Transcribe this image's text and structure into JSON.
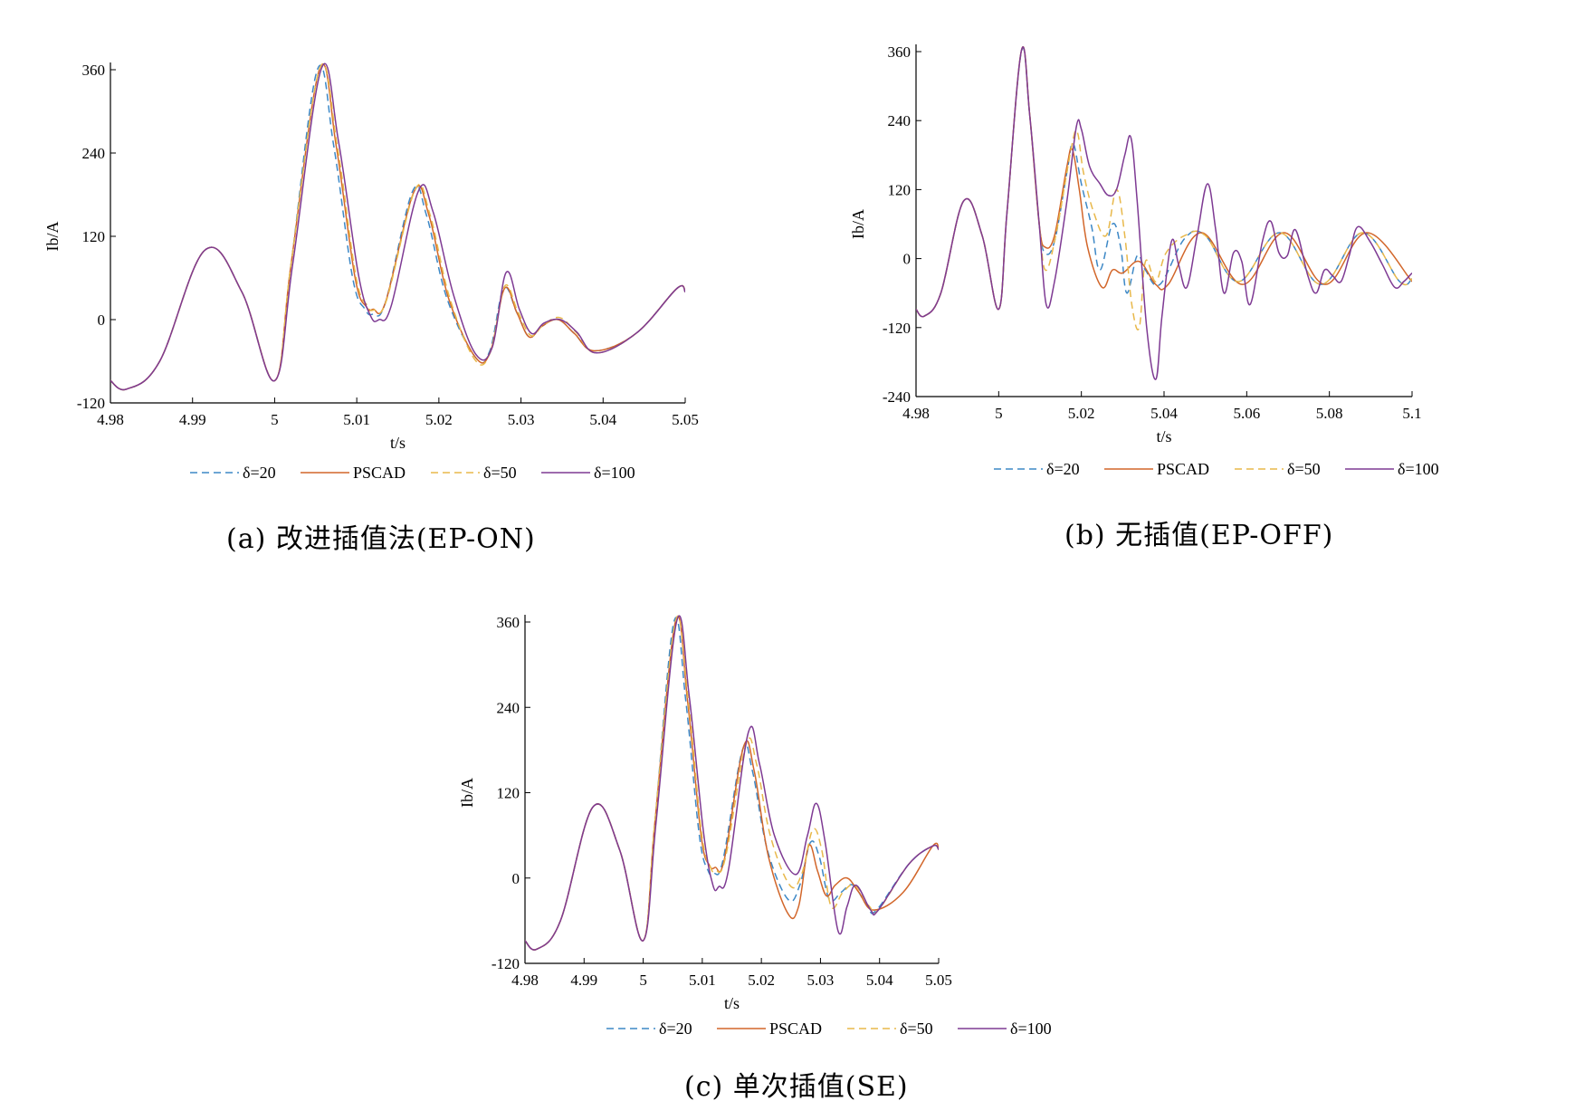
{
  "colors": {
    "d20": "#3d88c6",
    "pscad": "#d2662a",
    "d50": "#e8b84a",
    "d100": "#7e3a93"
  },
  "legend_labels": [
    "δ=20",
    "PSCAD",
    "δ=50",
    "δ=100"
  ],
  "captions": {
    "a": "(a) 改进插值法(EP-ON)",
    "b": "(b) 无插值(EP-OFF)",
    "c": "(c) 单次插值(SE)"
  },
  "chart_data": [
    {
      "id": "a",
      "type": "line",
      "xlabel": "t/s",
      "ylabel": "Ib/A",
      "xlim": [
        4.98,
        5.05
      ],
      "ylim": [
        -120,
        360
      ],
      "xticks": [
        4.98,
        4.99,
        5,
        5.01,
        5.02,
        5.03,
        5.04,
        5.05
      ],
      "xtick_labels": [
        "4.98",
        "4.99",
        "5",
        "5.01",
        "5.02",
        "5.03",
        "5.04",
        "5.05"
      ],
      "yticks": [
        -120,
        0,
        120,
        240,
        360
      ],
      "ytick_labels": [
        "-120",
        "0",
        "120",
        "240",
        "360"
      ],
      "legend": "bottom",
      "grid": false,
      "series": [
        {
          "name": "δ=20",
          "color_key": "d20",
          "dashed": true,
          "x": [
            4.98,
            4.982,
            4.986,
            4.9915,
            4.996,
            5.0,
            5.002,
            5.0052,
            5.0072,
            5.0095,
            5.011,
            5.012,
            5.0135,
            5.0168,
            5.0185,
            5.021,
            5.0245,
            5.0262,
            5.0279,
            5.0295,
            5.031,
            5.0325,
            5.0345,
            5.0365,
            5.039,
            5.044,
            5.049,
            5.05
          ],
          "y": [
            -88,
            -100,
            -60,
            100,
            40,
            -88,
            80,
            360,
            250,
            60,
            15,
            8,
            25,
            185,
            150,
            30,
            -55,
            -45,
            45,
            10,
            -25,
            -10,
            0,
            -20,
            -45,
            -20,
            45,
            40
          ]
        },
        {
          "name": "PSCAD",
          "color_key": "pscad",
          "dashed": false,
          "x": [
            4.98,
            4.982,
            4.986,
            4.9915,
            4.996,
            5.0,
            5.002,
            5.0055,
            5.0075,
            5.0098,
            5.0112,
            5.012,
            5.0135,
            5.017,
            5.0188,
            5.0212,
            5.0245,
            5.0263,
            5.028,
            5.0295,
            5.031,
            5.0325,
            5.0345,
            5.0365,
            5.039,
            5.044,
            5.049,
            5.05
          ],
          "y": [
            -88,
            -100,
            -60,
            100,
            40,
            -88,
            80,
            362,
            250,
            60,
            18,
            15,
            25,
            185,
            150,
            30,
            -55,
            -45,
            45,
            10,
            -25,
            -10,
            0,
            -20,
            -45,
            -20,
            45,
            40
          ]
        },
        {
          "name": "δ=50",
          "color_key": "d50",
          "dashed": true,
          "x": [
            4.98,
            4.982,
            4.986,
            4.9915,
            4.996,
            5.0,
            5.002,
            5.0055,
            5.0076,
            5.0099,
            5.0113,
            5.0121,
            5.0136,
            5.0171,
            5.0189,
            5.0213,
            5.0244,
            5.0263,
            5.028,
            5.0296,
            5.0312,
            5.0327,
            5.0347,
            5.0367,
            5.0392,
            5.0442,
            5.049,
            5.05
          ],
          "y": [
            -88,
            -100,
            -60,
            100,
            40,
            -88,
            80,
            362,
            252,
            62,
            20,
            14,
            27,
            187,
            152,
            32,
            -58,
            -46,
            48,
            12,
            -23,
            -8,
            3,
            -18,
            -48,
            -18,
            45,
            40
          ]
        },
        {
          "name": "δ=100",
          "color_key": "d100",
          "dashed": false,
          "x": [
            4.98,
            4.982,
            4.986,
            4.9915,
            4.996,
            5.0,
            5.0022,
            5.0057,
            5.0078,
            5.0102,
            5.0117,
            5.0127,
            5.0142,
            5.0175,
            5.0193,
            5.0218,
            5.0245,
            5.0265,
            5.0282,
            5.0298,
            5.0313,
            5.0328,
            5.0348,
            5.0368,
            5.0392,
            5.0442,
            5.049,
            5.05
          ],
          "y": [
            -88,
            -100,
            -60,
            100,
            40,
            -88,
            80,
            362,
            255,
            65,
            5,
            0,
            20,
            185,
            155,
            35,
            -50,
            -40,
            68,
            15,
            -20,
            -5,
            0,
            -18,
            -48,
            -18,
            45,
            40
          ]
        }
      ]
    },
    {
      "id": "b",
      "type": "line",
      "xlabel": "t/s",
      "ylabel": "Ib/A",
      "xlim": [
        4.98,
        5.1
      ],
      "ylim": [
        -240,
        360
      ],
      "xticks": [
        4.98,
        5,
        5.02,
        5.04,
        5.06,
        5.08,
        5.1
      ],
      "xtick_labels": [
        "4.98",
        "5",
        "5.02",
        "5.04",
        "5.06",
        "5.08",
        "5.1"
      ],
      "yticks": [
        -240,
        -120,
        0,
        120,
        240,
        360
      ],
      "ytick_labels": [
        "-240",
        "-120",
        "0",
        "120",
        "240",
        "360"
      ],
      "legend": "bottom",
      "grid": false,
      "series": [
        {
          "name": "δ=20",
          "color_key": "d20",
          "dashed": true,
          "x": [
            4.98,
            4.982,
            4.986,
            4.9915,
            4.996,
            5.0,
            5.002,
            5.0055,
            5.0075,
            5.0098,
            5.0112,
            5.0135,
            5.0165,
            5.018,
            5.02,
            5.0225,
            5.0245,
            5.0275,
            5.0295,
            5.031,
            5.0335,
            5.0355,
            5.039,
            5.045,
            5.05,
            5.058,
            5.068,
            5.078,
            5.088,
            5.097,
            5.1
          ],
          "y": [
            -88,
            -100,
            -60,
            100,
            40,
            -88,
            80,
            360,
            250,
            60,
            10,
            30,
            150,
            200,
            130,
            55,
            -20,
            60,
            20,
            -60,
            5,
            -20,
            -45,
            35,
            40,
            -40,
            45,
            -45,
            45,
            -40,
            -35
          ]
        },
        {
          "name": "PSCAD",
          "color_key": "pscad",
          "dashed": false,
          "x": [
            4.98,
            4.982,
            4.986,
            4.9915,
            4.996,
            5.0,
            5.002,
            5.0055,
            5.0075,
            5.0098,
            5.0112,
            5.0135,
            5.0165,
            5.0178,
            5.0195,
            5.0215,
            5.025,
            5.0275,
            5.03,
            5.034,
            5.038,
            5.041,
            5.049,
            5.059,
            5.069,
            5.079,
            5.089,
            5.1
          ],
          "y": [
            -88,
            -100,
            -60,
            100,
            40,
            -88,
            80,
            362,
            250,
            60,
            20,
            40,
            160,
            190,
            120,
            20,
            -50,
            -20,
            -25,
            -5,
            -45,
            -45,
            45,
            -45,
            45,
            -45,
            45,
            -40
          ]
        },
        {
          "name": "δ=50",
          "color_key": "d50",
          "dashed": true,
          "x": [
            4.98,
            4.982,
            4.986,
            4.9915,
            4.996,
            5.0,
            5.002,
            5.0055,
            5.0075,
            5.0098,
            5.0113,
            5.0138,
            5.0175,
            5.019,
            5.0205,
            5.023,
            5.026,
            5.0285,
            5.0305,
            5.0322,
            5.034,
            5.0355,
            5.038,
            5.0405,
            5.045,
            5.05,
            5.058,
            5.068,
            5.078,
            5.088,
            5.097,
            5.1
          ],
          "y": [
            -88,
            -100,
            -60,
            100,
            40,
            -88,
            80,
            362,
            252,
            62,
            -20,
            40,
            190,
            220,
            150,
            80,
            40,
            120,
            40,
            -80,
            -120,
            -5,
            -40,
            10,
            40,
            40,
            -40,
            45,
            -45,
            45,
            -40,
            -35
          ]
        },
        {
          "name": "δ=100",
          "color_key": "d100",
          "dashed": false,
          "x": [
            4.98,
            4.982,
            4.986,
            4.9915,
            4.996,
            5.0,
            5.002,
            5.0055,
            5.0075,
            5.0098,
            5.0115,
            5.0135,
            5.0165,
            5.0188,
            5.02,
            5.022,
            5.0245,
            5.0265,
            5.0285,
            5.0305,
            5.032,
            5.0335,
            5.0358,
            5.038,
            5.0395,
            5.0418,
            5.0435,
            5.0455,
            5.048,
            5.0505,
            5.0525,
            5.0545,
            5.0568,
            5.0588,
            5.0608,
            5.0638,
            5.0658,
            5.0678,
            5.0698,
            5.0718,
            5.0748,
            5.0768,
            5.0788,
            5.0808,
            5.0828,
            5.0848,
            5.0868,
            5.0898,
            5.0928,
            5.0958,
            5.098,
            5.1
          ],
          "y": [
            -88,
            -100,
            -60,
            100,
            40,
            -88,
            80,
            362,
            250,
            60,
            -80,
            -40,
            100,
            230,
            225,
            160,
            130,
            110,
            120,
            180,
            210,
            100,
            -120,
            -210,
            -100,
            30,
            -10,
            -50,
            40,
            130,
            50,
            -60,
            10,
            -5,
            -80,
            30,
            65,
            10,
            5,
            50,
            -30,
            -60,
            -20,
            -30,
            -40,
            5,
            55,
            30,
            -10,
            -50,
            -40,
            -25
          ]
        }
      ]
    },
    {
      "id": "c",
      "type": "line",
      "xlabel": "t/s",
      "ylabel": "Ib/A",
      "xlim": [
        4.98,
        5.05
      ],
      "ylim": [
        -120,
        360
      ],
      "xticks": [
        4.98,
        4.99,
        5,
        5.01,
        5.02,
        5.03,
        5.04,
        5.05
      ],
      "xtick_labels": [
        "4.98",
        "4.99",
        "5",
        "5.01",
        "5.02",
        "5.03",
        "5.04",
        "5.05"
      ],
      "yticks": [
        -120,
        0,
        120,
        240,
        360
      ],
      "ytick_labels": [
        "-120",
        "0",
        "120",
        "240",
        "360"
      ],
      "legend": "bottom",
      "grid": false,
      "series": [
        {
          "name": "δ=20",
          "color_key": "d20",
          "dashed": true,
          "x": [
            4.98,
            4.982,
            4.986,
            4.9915,
            4.996,
            5.0,
            5.002,
            5.0052,
            5.0072,
            5.0095,
            5.011,
            5.012,
            5.0135,
            5.0168,
            5.0185,
            5.021,
            5.0245,
            5.0265,
            5.0283,
            5.0298,
            5.0315,
            5.0335,
            5.0355,
            5.038,
            5.0395,
            5.045,
            5.049,
            5.05
          ],
          "y": [
            -88,
            -100,
            -60,
            100,
            40,
            -88,
            80,
            360,
            250,
            60,
            10,
            6,
            25,
            180,
            150,
            40,
            -30,
            -10,
            50,
            30,
            -30,
            -20,
            -10,
            -40,
            -45,
            20,
            45,
            40
          ]
        },
        {
          "name": "PSCAD",
          "color_key": "pscad",
          "dashed": false,
          "x": [
            4.98,
            4.982,
            4.986,
            4.9915,
            4.996,
            5.0,
            5.002,
            5.0055,
            5.0075,
            5.0098,
            5.0112,
            5.0122,
            5.0137,
            5.017,
            5.0188,
            5.0212,
            5.0245,
            5.0263,
            5.028,
            5.0295,
            5.031,
            5.0325,
            5.0345,
            5.0365,
            5.039,
            5.044,
            5.049,
            5.05
          ],
          "y": [
            -88,
            -100,
            -60,
            100,
            40,
            -88,
            80,
            362,
            250,
            60,
            18,
            15,
            25,
            185,
            150,
            30,
            -50,
            -40,
            45,
            10,
            -25,
            -10,
            0,
            -20,
            -45,
            -20,
            45,
            40
          ]
        },
        {
          "name": "δ=50",
          "color_key": "d50",
          "dashed": true,
          "x": [
            4.98,
            4.982,
            4.986,
            4.9915,
            4.996,
            5.0,
            5.002,
            5.0055,
            5.0076,
            5.0099,
            5.0114,
            5.0123,
            5.0139,
            5.0174,
            5.0192,
            5.0215,
            5.0248,
            5.0268,
            5.0287,
            5.0302,
            5.0318,
            5.0338,
            5.0358,
            5.0383,
            5.0398,
            5.045,
            5.049,
            5.05
          ],
          "y": [
            -88,
            -100,
            -60,
            100,
            40,
            -88,
            80,
            362,
            252,
            62,
            15,
            10,
            28,
            188,
            160,
            60,
            -10,
            5,
            68,
            40,
            -40,
            -20,
            -10,
            -40,
            -45,
            20,
            45,
            40
          ]
        },
        {
          "name": "δ=100",
          "color_key": "d100",
          "dashed": false,
          "x": [
            4.98,
            4.982,
            4.986,
            4.9915,
            4.996,
            5.0,
            5.0022,
            5.0057,
            5.0078,
            5.0102,
            5.0118,
            5.0128,
            5.0144,
            5.0178,
            5.0197,
            5.0222,
            5.0258,
            5.0278,
            5.0293,
            5.0308,
            5.033,
            5.0345,
            5.036,
            5.0385,
            5.0398,
            5.045,
            5.049,
            5.05
          ],
          "y": [
            -88,
            -100,
            -60,
            100,
            40,
            -88,
            80,
            362,
            255,
            65,
            -10,
            -12,
            10,
            205,
            160,
            60,
            5,
            60,
            105,
            50,
            -75,
            -40,
            -10,
            -45,
            -45,
            20,
            45,
            40
          ]
        }
      ]
    }
  ]
}
